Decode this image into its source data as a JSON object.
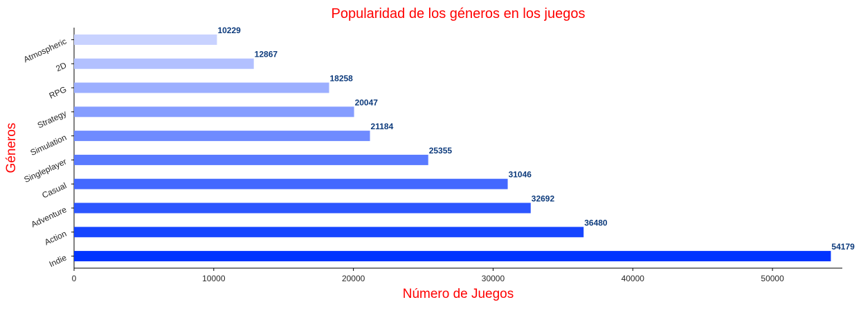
{
  "chart_data": {
    "type": "bar",
    "orientation": "horizontal",
    "title": "Popularidad de los géneros en los juegos",
    "xlabel": "Número de Juegos",
    "ylabel": "Géneros",
    "categories": [
      "Indie",
      "Action",
      "Adventure",
      "Casual",
      "Singleplayer",
      "Simulation",
      "Strategy",
      "RPG",
      "2D",
      "Atmospheric"
    ],
    "values": [
      54179,
      36480,
      32692,
      31046,
      25355,
      21184,
      20047,
      18258,
      12867,
      10229
    ],
    "xlim": [
      0,
      55000
    ],
    "xticks": [
      0,
      10000,
      20000,
      30000,
      40000,
      50000
    ],
    "xtick_labels": [
      "0",
      "10000",
      "20000",
      "30000",
      "40000",
      "50000"
    ],
    "grid": false,
    "legend": "none",
    "colors": {
      "title": "#ff0000",
      "axis_labels": "#ff0000",
      "value_labels": "#0d3b7c",
      "bar_gradient_dark": "#0033ff",
      "bar_gradient_light": "#c8d2ff"
    }
  }
}
